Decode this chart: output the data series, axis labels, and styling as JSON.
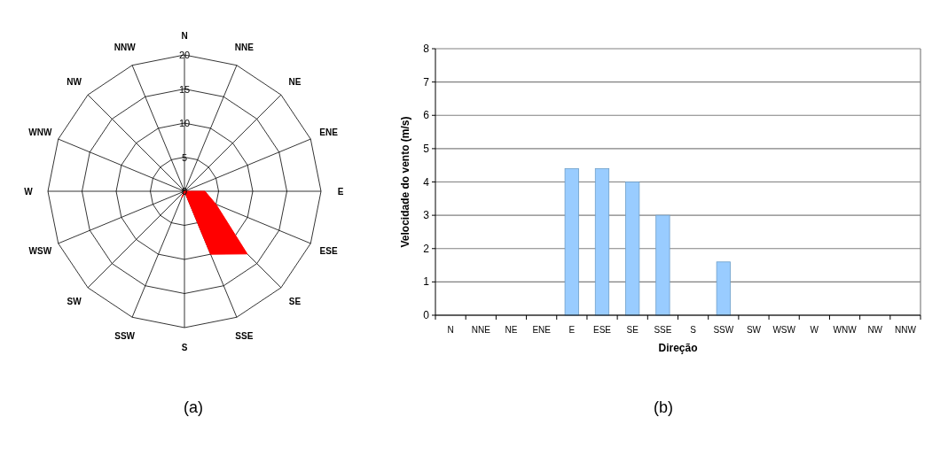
{
  "chart_data": [
    {
      "type": "radar",
      "categories": [
        "N",
        "NNE",
        "NE",
        "ENE",
        "E",
        "ESE",
        "SE",
        "SSE",
        "S",
        "SSW",
        "SW",
        "WSW",
        "W",
        "WNW",
        "NW",
        "NNW"
      ],
      "series": [
        {
          "color": "#ff0000",
          "values": [
            0,
            0,
            0,
            0,
            3,
            5,
            13,
            10,
            0,
            1,
            0,
            0,
            0,
            0,
            0,
            0
          ]
        }
      ],
      "ylim": [
        0,
        20
      ],
      "yticks": [
        0,
        5,
        10,
        15,
        20
      ],
      "grid": true,
      "annotations": [
        "(a)"
      ]
    },
    {
      "type": "bar",
      "categories": [
        "N",
        "NNE",
        "NE",
        "ENE",
        "E",
        "ESE",
        "SE",
        "SSE",
        "S",
        "SSW",
        "SW",
        "WSW",
        "W",
        "WNW",
        "NW",
        "NNW"
      ],
      "values": [
        0,
        0,
        0,
        0,
        4.4,
        4.4,
        4.0,
        3.0,
        0,
        1.6,
        0,
        0,
        0,
        0,
        0,
        0
      ],
      "color": "#99ccff",
      "ylim": [
        0,
        8
      ],
      "yticks": [
        0,
        1,
        2,
        3,
        4,
        5,
        6,
        7,
        8
      ],
      "grid": "y",
      "xlabel": "Direção",
      "ylabel": "Velocidade do vento (m/s)",
      "annotations": [
        "(b)"
      ]
    }
  ]
}
